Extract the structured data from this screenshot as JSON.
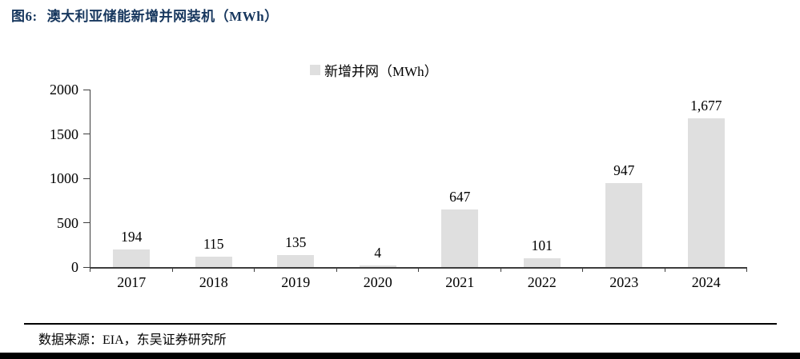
{
  "page": {
    "figure_label": "图6:",
    "figure_title": "澳大利亚储能新增并网装机（MWh）",
    "title_color": "#17375E",
    "source_text": "数据来源：EIA，东吴证券研究所",
    "footer_bar_color": "#000000",
    "separator_color": "#000000"
  },
  "chart_data": {
    "type": "bar",
    "title": "",
    "legend": [
      "新增并网（MWh）"
    ],
    "legend_position": "top-center",
    "categories": [
      "2017",
      "2018",
      "2019",
      "2020",
      "2021",
      "2022",
      "2023",
      "2024"
    ],
    "values": [
      194,
      115,
      135,
      4,
      647,
      101,
      947,
      1677
    ],
    "value_labels": [
      "194",
      "115",
      "135",
      "4",
      "647",
      "101",
      "947",
      "1,677"
    ],
    "ylabel": "",
    "xlabel": "",
    "ylim": [
      0,
      2000
    ],
    "yticks": [
      0,
      500,
      1000,
      1500,
      2000
    ],
    "grid": false,
    "bar_color": "#DFDFDF",
    "axis_color": "#3d3d3d",
    "label_color": "#000000"
  }
}
